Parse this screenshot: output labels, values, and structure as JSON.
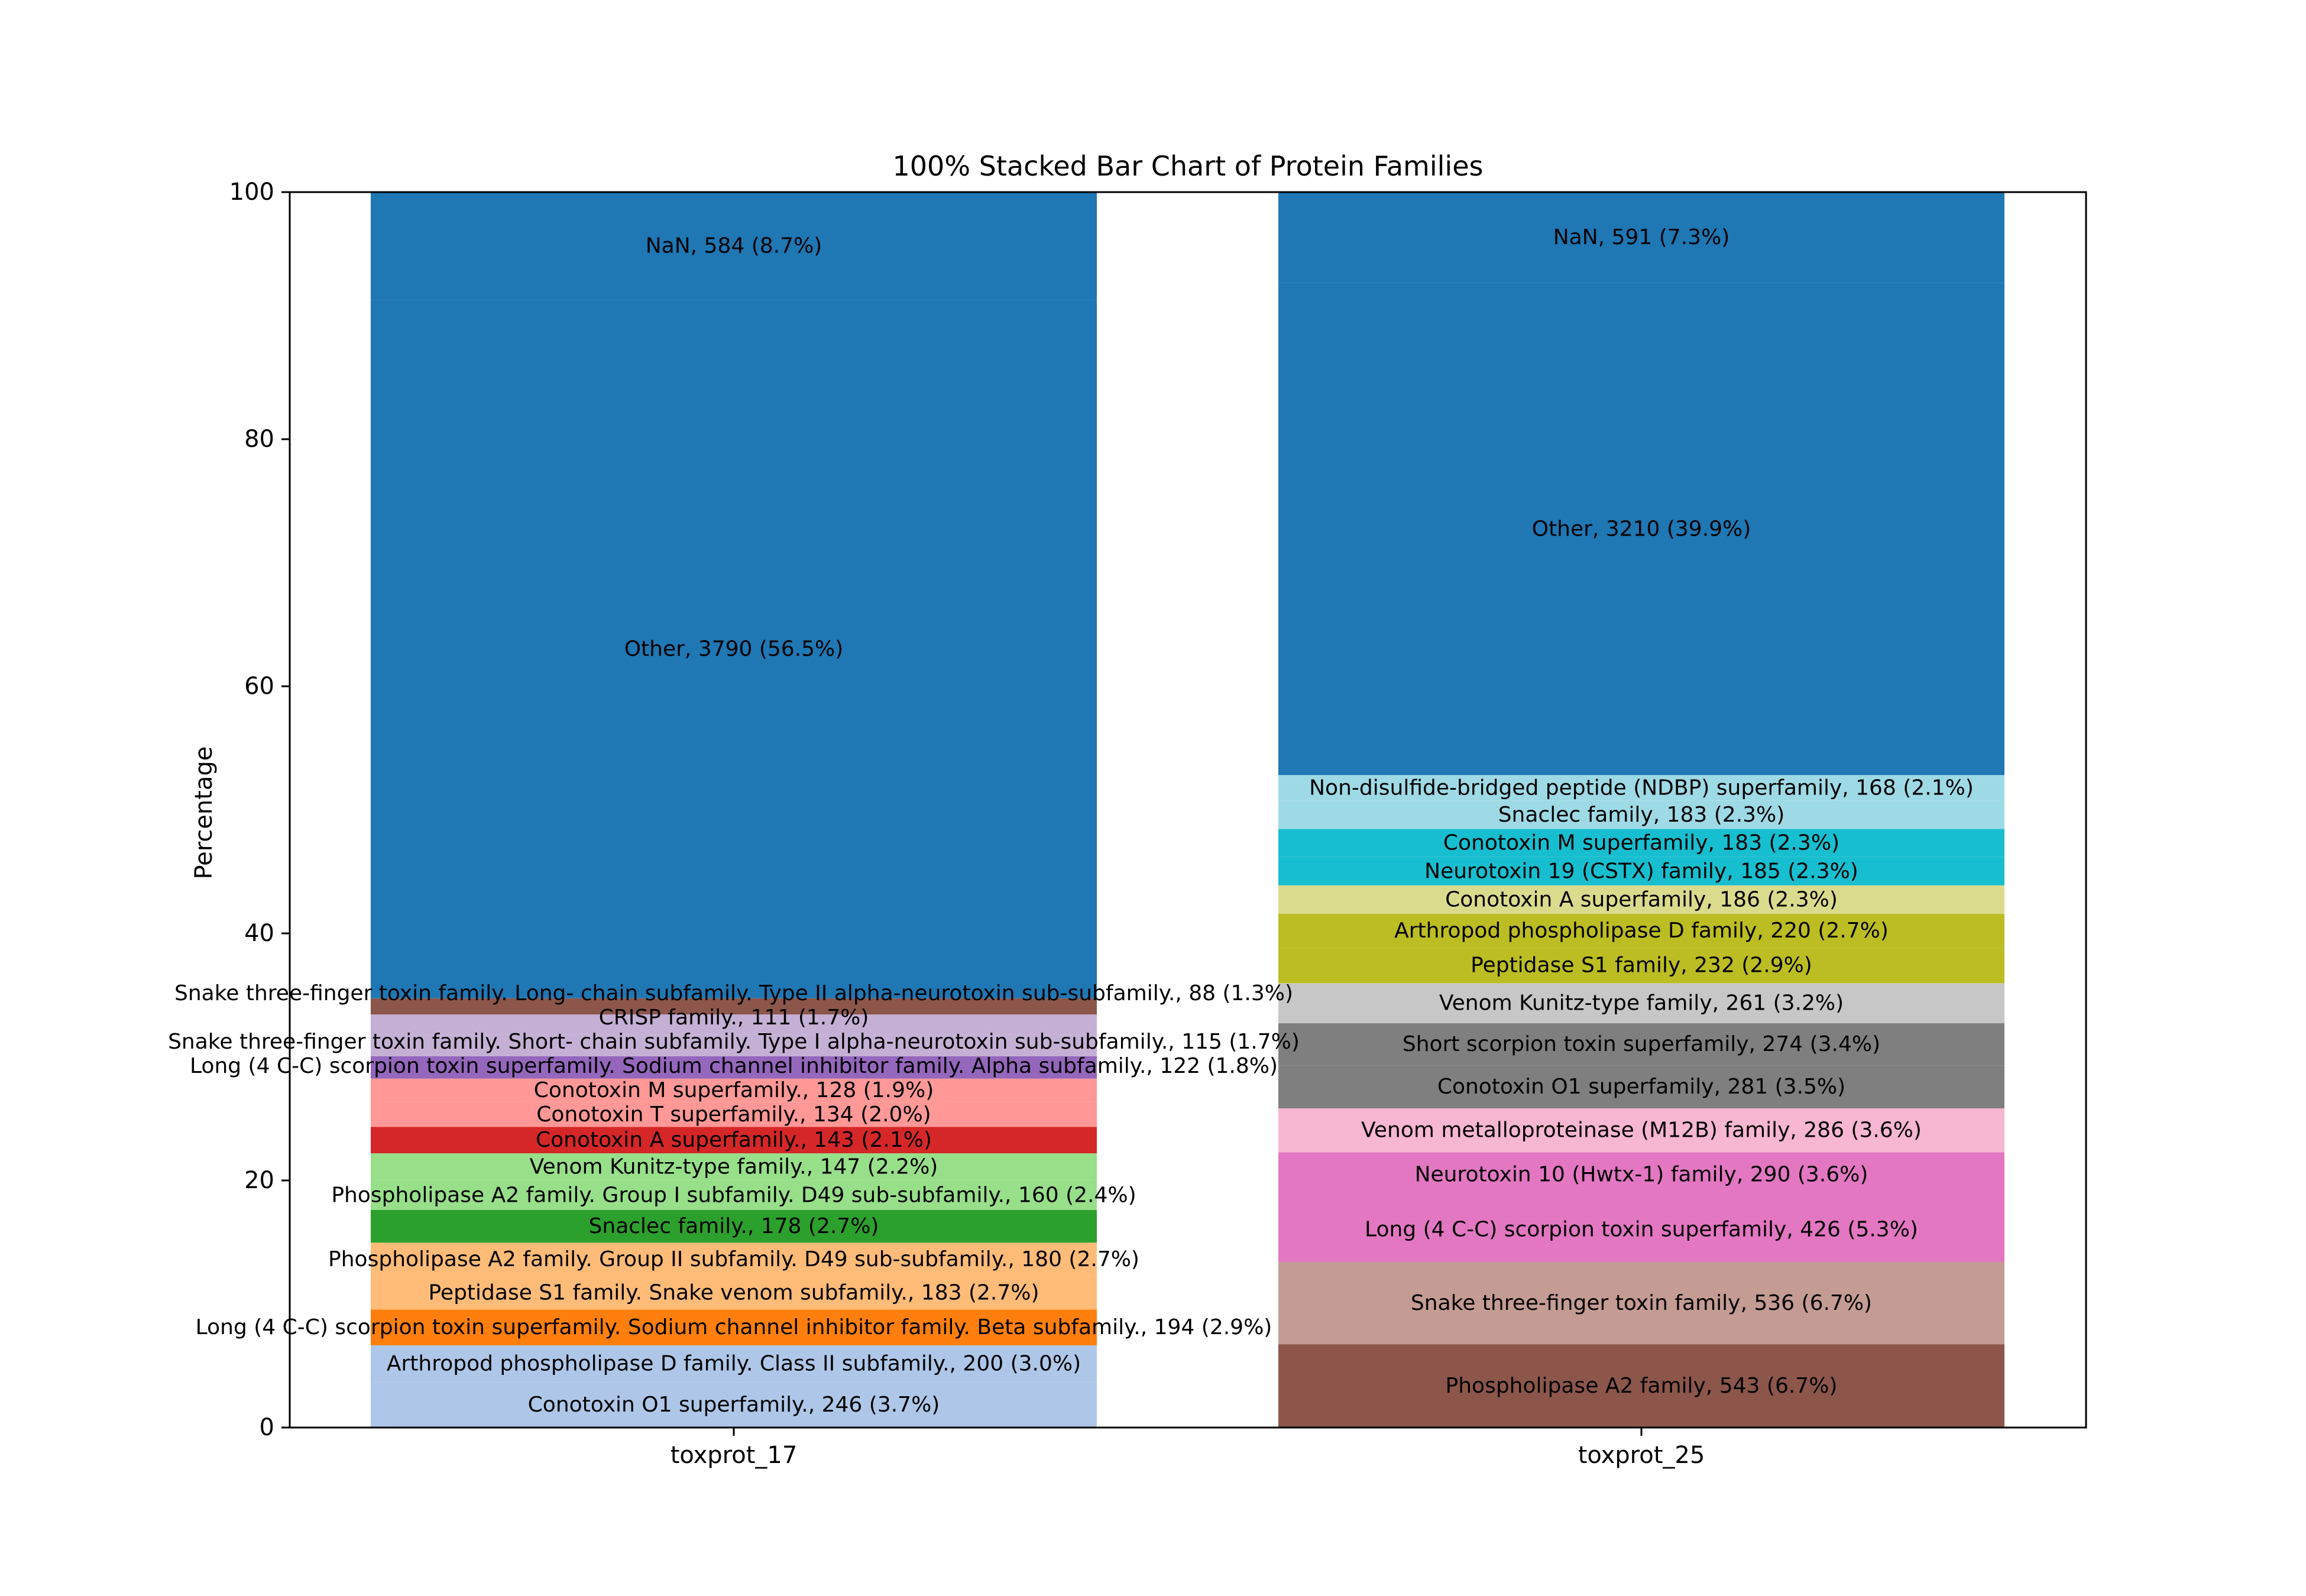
{
  "chart_data": {
    "type": "bar",
    "stacked": true,
    "normalized": true,
    "title": "100% Stacked Bar Chart of Protein Families",
    "xlabel": "",
    "ylabel": "Percentage",
    "ylim": [
      0,
      100
    ],
    "yticks": [
      "0",
      "20",
      "40",
      "60",
      "80",
      "100"
    ],
    "grid": false,
    "categories": [
      "toxprot_17",
      "toxprot_25"
    ],
    "bars": [
      {
        "category": "toxprot_17",
        "segments": [
          {
            "label": "Conotoxin O1 superfamily., 246 (3.7%)",
            "count": 246,
            "percent": 3.7,
            "color": "#aec7e8"
          },
          {
            "label": "Arthropod phospholipase D family. Class II subfamily., 200 (3.0%)",
            "count": 200,
            "percent": 3.0,
            "color": "#aec7e8"
          },
          {
            "label": "Long (4 C-C) scorpion toxin superfamily. Sodium channel inhibitor family. Beta subfamily., 194 (2.9%)",
            "count": 194,
            "percent": 2.9,
            "color": "#ff7f0e"
          },
          {
            "label": "Peptidase S1 family. Snake venom subfamily., 183 (2.7%)",
            "count": 183,
            "percent": 2.7,
            "color": "#ffbb78"
          },
          {
            "label": "Phospholipase A2 family. Group II subfamily. D49 sub-subfamily., 180 (2.7%)",
            "count": 180,
            "percent": 2.7,
            "color": "#ffbb78"
          },
          {
            "label": "Snaclec family., 178 (2.7%)",
            "count": 178,
            "percent": 2.7,
            "color": "#2ca02c"
          },
          {
            "label": "Phospholipase A2 family. Group I subfamily. D49 sub-subfamily., 160 (2.4%)",
            "count": 160,
            "percent": 2.4,
            "color": "#98df8a"
          },
          {
            "label": "Venom Kunitz-type family., 147 (2.2%)",
            "count": 147,
            "percent": 2.2,
            "color": "#98df8a"
          },
          {
            "label": "Conotoxin A superfamily., 143 (2.1%)",
            "count": 143,
            "percent": 2.1,
            "color": "#d62728"
          },
          {
            "label": "Conotoxin T superfamily., 134 (2.0%)",
            "count": 134,
            "percent": 2.0,
            "color": "#ff9896"
          },
          {
            "label": "Conotoxin M superfamily., 128 (1.9%)",
            "count": 128,
            "percent": 1.9,
            "color": "#ff9896"
          },
          {
            "label": "Long (4 C-C) scorpion toxin superfamily. Sodium channel inhibitor family. Alpha subfamily., 122 (1.8%)",
            "count": 122,
            "percent": 1.8,
            "color": "#9467bd"
          },
          {
            "label": "Snake three-finger toxin family. Short- chain subfamily. Type I alpha-neurotoxin sub-subfamily., 115 (1.7%)",
            "count": 115,
            "percent": 1.7,
            "color": "#c5b0d5"
          },
          {
            "label": "CRISP family., 111 (1.7%)",
            "count": 111,
            "percent": 1.7,
            "color": "#c5b0d5"
          },
          {
            "label": "Snake three-finger toxin family. Long- chain subfamily. Type II alpha-neurotoxin sub-subfamily., 88 (1.3%)",
            "count": 88,
            "percent": 1.3,
            "color": "#8c564b"
          },
          {
            "label": "Other, 3790 (56.5%)",
            "count": 3790,
            "percent": 56.5,
            "color": "#1f77b4"
          },
          {
            "label": "NaN, 584 (8.7%)",
            "count": 584,
            "percent": 8.7,
            "color": "#1f77b4"
          }
        ]
      },
      {
        "category": "toxprot_25",
        "segments": [
          {
            "label": "Phospholipase A2 family, 543 (6.7%)",
            "count": 543,
            "percent": 6.7,
            "color": "#8c564b"
          },
          {
            "label": "Snake three-finger toxin family, 536 (6.7%)",
            "count": 536,
            "percent": 6.7,
            "color": "#c49c94"
          },
          {
            "label": "Long (4 C-C) scorpion toxin superfamily, 426 (5.3%)",
            "count": 426,
            "percent": 5.3,
            "color": "#e377c2"
          },
          {
            "label": "Neurotoxin 10 (Hwtx-1) family, 290 (3.6%)",
            "count": 290,
            "percent": 3.6,
            "color": "#e377c2"
          },
          {
            "label": "Venom metalloproteinase (M12B) family, 286 (3.6%)",
            "count": 286,
            "percent": 3.6,
            "color": "#f7b6d2"
          },
          {
            "label": "Conotoxin O1 superfamily, 281 (3.5%)",
            "count": 281,
            "percent": 3.5,
            "color": "#7f7f7f"
          },
          {
            "label": "Short scorpion toxin superfamily, 274 (3.4%)",
            "count": 274,
            "percent": 3.4,
            "color": "#7f7f7f"
          },
          {
            "label": "Venom Kunitz-type family, 261 (3.2%)",
            "count": 261,
            "percent": 3.2,
            "color": "#c7c7c7"
          },
          {
            "label": "Peptidase S1 family, 232 (2.9%)",
            "count": 232,
            "percent": 2.9,
            "color": "#bcbd22"
          },
          {
            "label": "Arthropod phospholipase D family, 220 (2.7%)",
            "count": 220,
            "percent": 2.7,
            "color": "#bcbd22"
          },
          {
            "label": "Conotoxin A superfamily, 186 (2.3%)",
            "count": 186,
            "percent": 2.3,
            "color": "#dbdb8d"
          },
          {
            "label": "Neurotoxin 19 (CSTX) family, 185 (2.3%)",
            "count": 185,
            "percent": 2.3,
            "color": "#17becf"
          },
          {
            "label": "Conotoxin M superfamily, 183 (2.3%)",
            "count": 183,
            "percent": 2.3,
            "color": "#17becf"
          },
          {
            "label": "Snaclec family, 183 (2.3%)",
            "count": 183,
            "percent": 2.3,
            "color": "#9edae5"
          },
          {
            "label": "Non-disulfide-bridged peptide (NDBP) superfamily, 168 (2.1%)",
            "count": 168,
            "percent": 2.1,
            "color": "#9edae5"
          },
          {
            "label": "Other, 3210 (39.9%)",
            "count": 3210,
            "percent": 39.9,
            "color": "#1f77b4"
          },
          {
            "label": "NaN, 591 (7.3%)",
            "count": 591,
            "percent": 7.3,
            "color": "#1f77b4"
          }
        ]
      }
    ]
  }
}
